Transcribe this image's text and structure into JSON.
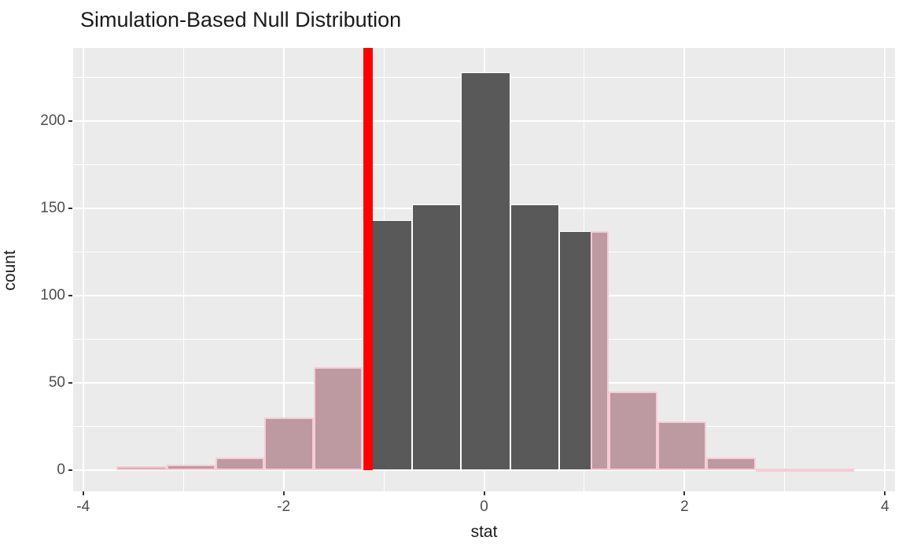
{
  "title": "Simulation-Based Null Distribution",
  "chart_data": {
    "type": "bar",
    "subtype": "histogram-with-shaded-p-value",
    "title": "Simulation-Based Null Distribution",
    "xlabel": "stat",
    "ylabel": "count",
    "x_ticks": [
      -4,
      -2,
      0,
      2,
      4
    ],
    "y_ticks": [
      0,
      50,
      100,
      150,
      200
    ],
    "xlim": [
      -4.1,
      4.1
    ],
    "ylim": [
      -12.2,
      241.8
    ],
    "grid": true,
    "legend_position": "none",
    "bins": [
      {
        "start": -3.67,
        "end": -3.17,
        "count": 2,
        "shaded": true
      },
      {
        "start": -3.17,
        "end": -2.68,
        "count": 3,
        "shaded": true
      },
      {
        "start": -2.68,
        "end": -2.19,
        "count": 7,
        "shaded": true
      },
      {
        "start": -2.19,
        "end": -1.7,
        "count": 30,
        "shaded": true
      },
      {
        "start": -1.7,
        "end": -1.21,
        "count": 59,
        "shaded": true
      },
      {
        "start": -1.21,
        "end": -0.72,
        "count": 143,
        "shaded": false
      },
      {
        "start": -0.72,
        "end": -0.23,
        "count": 152,
        "shaded": false
      },
      {
        "start": -0.23,
        "end": 0.26,
        "count": 228,
        "shaded": false
      },
      {
        "start": 0.26,
        "end": 0.75,
        "count": 152,
        "shaded": false
      },
      {
        "start": 0.75,
        "end": 1.24,
        "count": 137,
        "shaded": "partial",
        "shade_from": 1.06
      },
      {
        "start": 1.24,
        "end": 1.73,
        "count": 45,
        "shaded": true
      },
      {
        "start": 1.73,
        "end": 2.22,
        "count": 28,
        "shaded": true
      },
      {
        "start": 2.22,
        "end": 2.71,
        "count": 7,
        "shaded": true
      },
      {
        "start": 2.71,
        "end": 3.2,
        "count": 1,
        "shaded": true
      },
      {
        "start": 3.2,
        "end": 3.69,
        "count": 1,
        "shaded": true
      }
    ],
    "obs_stat_line": {
      "x": -1.16,
      "direction": "two-sided"
    }
  },
  "colors": {
    "panel_bg": "#ebebeb",
    "grid": "#ffffff",
    "bar_fill": "#595959",
    "bar_stroke": "#ffffff",
    "shaded_fill": "#bd99a1",
    "shaded_stroke": "#f7ccd5",
    "obs_line": "#ff0000",
    "tick_label": "#4d4d4d",
    "axis_title": "#1a1a1a",
    "title": "#1a1a1a"
  }
}
